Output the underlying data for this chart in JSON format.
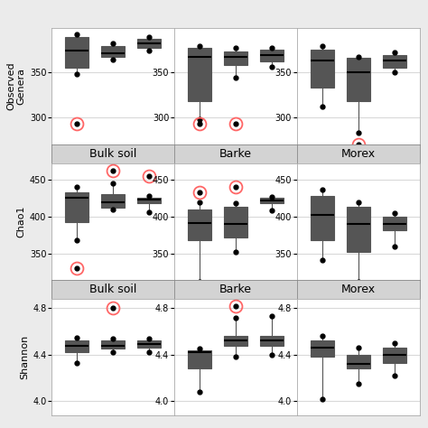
{
  "colors": {
    "gold": "#D4A017",
    "blue": "#5B9BD5",
    "green": "#2E8B6E"
  },
  "col_titles": [
    "Bulk soil",
    "Barke",
    "Morex"
  ],
  "background": "#EBEBEB",
  "panel_bg": "#FFFFFF",
  "grid_color": "#D9D9D9",
  "observed": {
    "bulk_soil": {
      "gold": {
        "q1": 355,
        "med": 375,
        "q3": 390,
        "whislo": 348,
        "whishi": 393,
        "fliers": [
          293
        ]
      },
      "blue": {
        "q1": 368,
        "med": 372,
        "q3": 380,
        "whislo": 364,
        "whishi": 383,
        "fliers": []
      },
      "green": {
        "q1": 378,
        "med": 383,
        "q3": 388,
        "whislo": 375,
        "whishi": 390,
        "fliers": []
      }
    },
    "barke": {
      "gold": {
        "q1": 318,
        "med": 368,
        "q3": 378,
        "whislo": 298,
        "whishi": 380,
        "fliers": [
          293
        ]
      },
      "blue": {
        "q1": 358,
        "med": 368,
        "q3": 374,
        "whislo": 344,
        "whishi": 378,
        "fliers": [
          293
        ]
      },
      "green": {
        "q1": 362,
        "med": 370,
        "q3": 376,
        "whislo": 356,
        "whishi": 378,
        "fliers": []
      }
    },
    "morex": {
      "gold": {
        "q1": 333,
        "med": 363,
        "q3": 376,
        "whislo": 312,
        "whishi": 380,
        "fliers": []
      },
      "blue": {
        "q1": 318,
        "med": 350,
        "q3": 366,
        "whislo": 283,
        "whishi": 368,
        "fliers": [
          270
        ]
      },
      "green": {
        "q1": 355,
        "med": 363,
        "q3": 370,
        "whislo": 350,
        "whishi": 373,
        "fliers": []
      }
    }
  },
  "chao1": {
    "bulk_soil": {
      "gold": {
        "q1": 393,
        "med": 425,
        "q3": 433,
        "whislo": 368,
        "whishi": 440,
        "fliers": [
          330
        ]
      },
      "blue": {
        "q1": 412,
        "med": 420,
        "q3": 430,
        "whislo": 410,
        "whishi": 445,
        "fliers": [
          462
        ]
      },
      "green": {
        "q1": 418,
        "med": 423,
        "q3": 426,
        "whislo": 406,
        "whishi": 428,
        "fliers": [
          455
        ]
      }
    },
    "barke": {
      "gold": {
        "q1": 368,
        "med": 392,
        "q3": 410,
        "whislo": 312,
        "whishi": 420,
        "fliers": [
          433
        ]
      },
      "blue": {
        "q1": 372,
        "med": 390,
        "q3": 413,
        "whislo": 352,
        "whishi": 418,
        "fliers": [
          440
        ]
      },
      "green": {
        "q1": 418,
        "med": 422,
        "q3": 425,
        "whislo": 408,
        "whishi": 427,
        "fliers": []
      }
    },
    "morex": {
      "gold": {
        "q1": 368,
        "med": 403,
        "q3": 428,
        "whislo": 342,
        "whishi": 436,
        "fliers": []
      },
      "blue": {
        "q1": 352,
        "med": 390,
        "q3": 413,
        "whislo": 312,
        "whishi": 420,
        "fliers": []
      },
      "green": {
        "q1": 382,
        "med": 390,
        "q3": 400,
        "whislo": 360,
        "whishi": 405,
        "fliers": []
      }
    }
  },
  "shannon": {
    "bulk_soil": {
      "gold": {
        "q1": 4.42,
        "med": 4.48,
        "q3": 4.52,
        "whislo": 4.33,
        "whishi": 4.55,
        "fliers": []
      },
      "blue": {
        "q1": 4.45,
        "med": 4.48,
        "q3": 4.52,
        "whislo": 4.42,
        "whishi": 4.54,
        "fliers": [
          4.8
        ]
      },
      "green": {
        "q1": 4.46,
        "med": 4.49,
        "q3": 4.52,
        "whislo": 4.42,
        "whishi": 4.54,
        "fliers": []
      }
    },
    "barke": {
      "gold": {
        "q1": 4.28,
        "med": 4.42,
        "q3": 4.44,
        "whislo": 4.08,
        "whishi": 4.45,
        "fliers": []
      },
      "blue": {
        "q1": 4.48,
        "med": 4.52,
        "q3": 4.56,
        "whislo": 4.38,
        "whishi": 4.72,
        "fliers": [
          4.82
        ]
      },
      "green": {
        "q1": 4.48,
        "med": 4.52,
        "q3": 4.56,
        "whislo": 4.4,
        "whishi": 4.73,
        "fliers": []
      }
    },
    "morex": {
      "gold": {
        "q1": 4.38,
        "med": 4.46,
        "q3": 4.52,
        "whislo": 4.02,
        "whishi": 4.56,
        "fliers": []
      },
      "blue": {
        "q1": 4.28,
        "med": 4.32,
        "q3": 4.4,
        "whislo": 4.15,
        "whishi": 4.46,
        "fliers": []
      },
      "green": {
        "q1": 4.33,
        "med": 4.4,
        "q3": 4.46,
        "whislo": 4.22,
        "whishi": 4.5,
        "fliers": []
      }
    }
  },
  "ylims": {
    "observed": [
      270,
      400
    ],
    "chao1": [
      315,
      472
    ],
    "shannon": [
      3.88,
      4.88
    ]
  },
  "yticks": {
    "observed": [
      300,
      350
    ],
    "chao1": [
      350,
      400,
      450
    ],
    "shannon": [
      4.0,
      4.4,
      4.8
    ]
  },
  "row_ylabels": [
    "Observed\nGenera",
    "Chao1",
    "Shannon"
  ],
  "outlier_circle_color": "#FF6666",
  "strip_bg": "#D3D3D3",
  "strip_edge": "#888888"
}
